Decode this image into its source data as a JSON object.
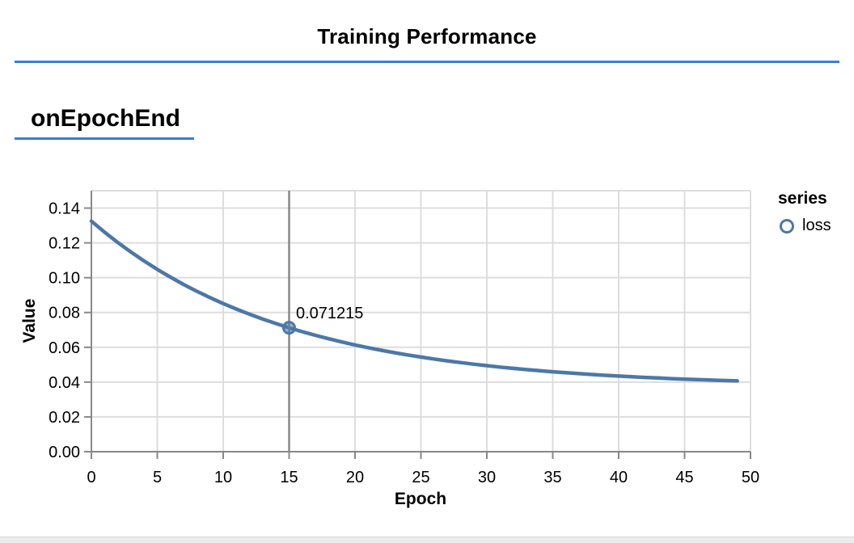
{
  "page": {
    "title": "Training Performance",
    "section_label": "onEpochEnd",
    "accent_color": "#357edd"
  },
  "chart_data": {
    "type": "line",
    "xlabel": "Epoch",
    "ylabel": "Value",
    "xlim": [
      0,
      50
    ],
    "ylim": [
      0,
      0.15
    ],
    "x_ticks": [
      0,
      5,
      10,
      15,
      20,
      25,
      30,
      35,
      40,
      45,
      50
    ],
    "y_ticks": [
      0.0,
      0.02,
      0.04,
      0.06,
      0.08,
      0.1,
      0.12,
      0.14
    ],
    "grid": true,
    "grid_color": "#dddddd",
    "axis_color": "#888888",
    "legend": {
      "title": "series",
      "position": "right",
      "entries": [
        {
          "label": "loss",
          "color": "#4c78a8",
          "symbol": "circle-outline"
        }
      ]
    },
    "series": [
      {
        "name": "loss",
        "color": "#4c78a8",
        "x": [
          0,
          1,
          2,
          3,
          4,
          5,
          6,
          7,
          8,
          9,
          10,
          11,
          12,
          13,
          14,
          15,
          16,
          17,
          18,
          19,
          20,
          21,
          22,
          23,
          24,
          25,
          26,
          27,
          28,
          29,
          30,
          31,
          32,
          33,
          34,
          35,
          36,
          37,
          38,
          39,
          40,
          41,
          42,
          43,
          44,
          45,
          46,
          47,
          48,
          49
        ],
        "y": [
          0.1325,
          0.126165,
          0.120253,
          0.114734,
          0.109583,
          0.104775,
          0.100288,
          0.096099,
          0.09219,
          0.088541,
          0.085135,
          0.081956,
          0.07899,
          0.07622,
          0.073636,
          0.071215,
          0.068971,
          0.06687,
          0.064908,
          0.063077,
          0.061368,
          0.059773,
          0.058284,
          0.056895,
          0.055598,
          0.054387,
          0.053257,
          0.052203,
          0.051218,
          0.050296,
          0.049439,
          0.048639,
          0.047892,
          0.047195,
          0.046544,
          0.045937,
          0.04537,
          0.044841,
          0.044347,
          0.043886,
          0.043456,
          0.043055,
          0.04268,
          0.04233,
          0.042004,
          0.041699,
          0.041414,
          0.041149,
          0.040901,
          0.04067
        ]
      }
    ],
    "highlight": {
      "x": 15,
      "y": 0.071215,
      "label": "0.071215",
      "rule_color": "#888888"
    }
  }
}
